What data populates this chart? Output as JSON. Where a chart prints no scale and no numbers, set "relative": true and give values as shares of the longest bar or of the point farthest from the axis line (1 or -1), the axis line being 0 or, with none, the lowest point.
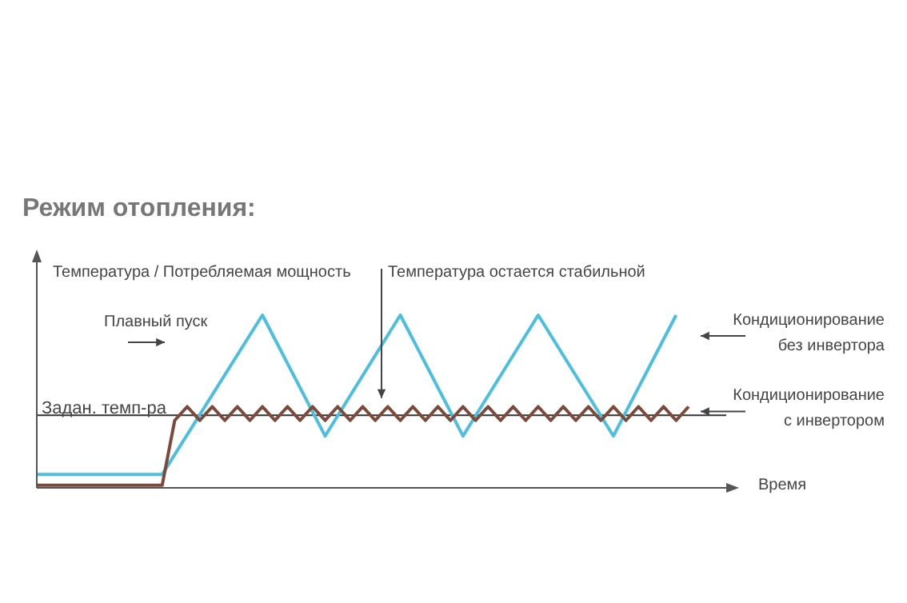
{
  "chart_data": {
    "type": "line",
    "title": "Режим отопления:",
    "xlabel": "Время",
    "ylabel": "Температура / Потребляемая мощность",
    "relative": true,
    "legend": false,
    "marker": "none",
    "categories": [
      null,
      null,
      null,
      null,
      null,
      null,
      null,
      null,
      null,
      null,
      null,
      null,
      null,
      null,
      null,
      null,
      null,
      null,
      null,
      null,
      null,
      null,
      null,
      null,
      null,
      null,
      null,
      null,
      null,
      null,
      null,
      null,
      null,
      null,
      null,
      null,
      null,
      null,
      null,
      null,
      null,
      null,
      null,
      null,
      null,
      null,
      null,
      null,
      null,
      null,
      null,
      null,
      null,
      null,
      null,
      null
    ],
    "series": [
      {
        "name": "Кондиционирование без инвертора",
        "color": "#4bbfe0",
        "values": [
          0.077,
          null,
          null,
          null,
          null,
          null,
          null,
          null,
          null,
          null,
          0.077,
          null,
          null,
          null,
          null,
          null,
          null,
          null,
          1,
          null,
          null,
          null,
          null,
          0.3,
          null,
          null,
          null,
          null,
          null,
          1,
          null,
          null,
          null,
          null,
          0.3,
          null,
          null,
          null,
          null,
          null,
          1,
          null,
          null,
          null,
          null,
          null,
          0.3,
          null,
          null,
          null,
          null,
          1,
          null,
          null,
          null,
          null
        ]
      },
      {
        "name": "Кондиционирование с инвертором",
        "color": "#7b4a3a",
        "values": [
          0.015,
          null,
          null,
          null,
          null,
          null,
          null,
          null,
          null,
          null,
          0.015,
          0.39,
          0.47,
          0.39,
          0.47,
          0.39,
          0.47,
          0.39,
          0.47,
          0.39,
          0.47,
          0.39,
          0.47,
          0.39,
          0.47,
          0.39,
          0.47,
          0.39,
          0.47,
          0.39,
          0.47,
          0.39,
          0.47,
          0.39,
          0.47,
          0.39,
          0.47,
          0.39,
          0.47,
          0.39,
          0.47,
          0.39,
          0.47,
          0.39,
          0.47,
          0.39,
          0.47,
          0.39,
          0.47,
          0.39,
          0.47,
          0.39,
          0.47,
          null,
          null,
          null
        ]
      }
    ],
    "ref_lines": [
      {
        "axis": "y",
        "value": 0.42,
        "label": "Задан. темп-ра",
        "color": "#333333"
      }
    ],
    "annotations": [
      "Температура остается стабильной",
      "Плавный пуск"
    ]
  }
}
